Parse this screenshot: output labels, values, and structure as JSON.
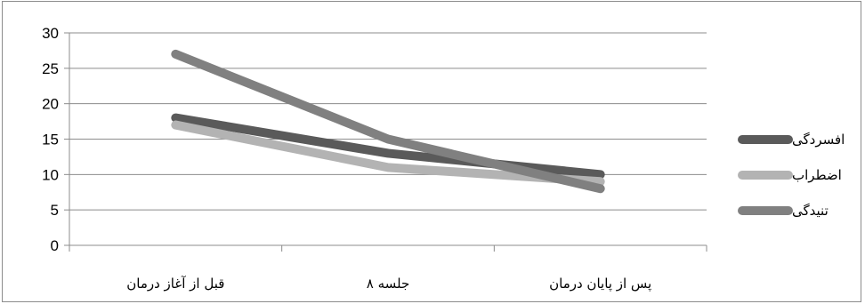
{
  "chart_data": {
    "type": "line",
    "title": "",
    "xlabel": "",
    "ylabel": "",
    "ylim": [
      0,
      30
    ],
    "yticks": [
      0,
      5,
      10,
      15,
      20,
      25,
      30
    ],
    "grid": true,
    "legend_position": "right",
    "categories": [
      "قبل از آغاز درمان",
      "جلسه ۸",
      "پس از پایان درمان"
    ],
    "series": [
      {
        "name": "افسردگی",
        "values": [
          18,
          13,
          10
        ],
        "color": "#5a5a5a"
      },
      {
        "name": "اضطراب",
        "values": [
          17,
          11,
          9
        ],
        "color": "#b3b3b3"
      },
      {
        "name": "تنیدگی",
        "values": [
          27,
          15,
          8
        ],
        "color": "#808080"
      }
    ]
  }
}
